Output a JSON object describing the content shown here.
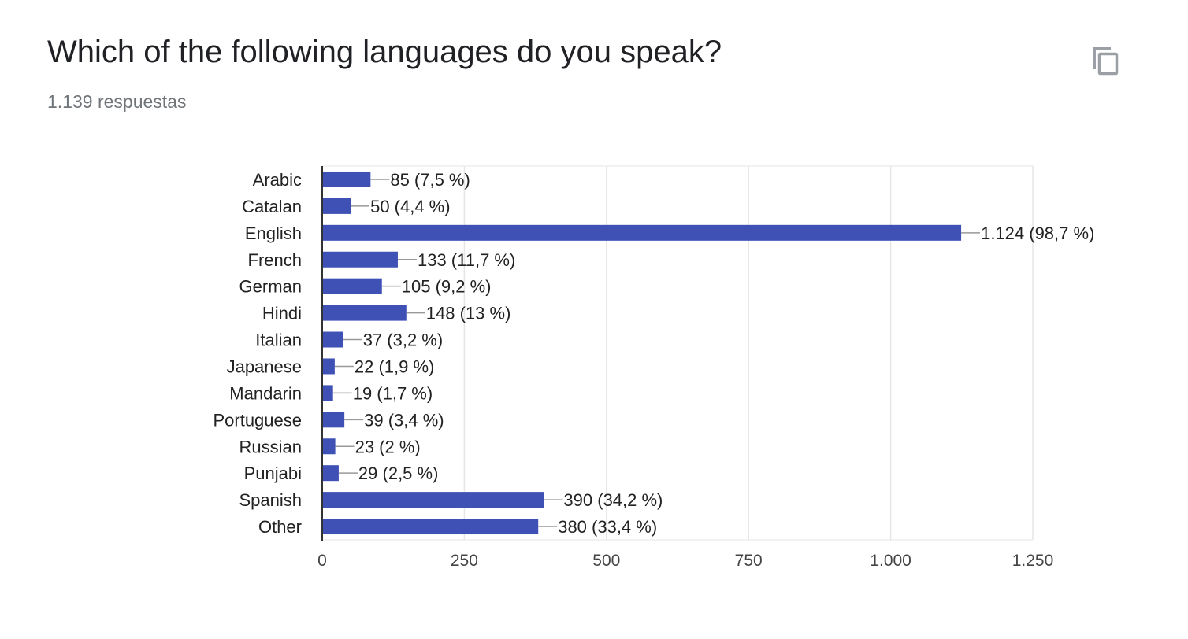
{
  "question": {
    "title": "Which of the following languages do you speak?",
    "responses": "1.139 respuestas"
  },
  "icons": {
    "copy": "copy-icon"
  },
  "colors": {
    "bar": "#3f51b5",
    "axis": "#333333",
    "grid": "#e6e6e6",
    "text": "#222222"
  },
  "chart_data": {
    "type": "bar",
    "orientation": "horizontal",
    "categories": [
      "Arabic",
      "Catalan",
      "English",
      "French",
      "German",
      "Hindi",
      "Italian",
      "Japanese",
      "Mandarin",
      "Portuguese",
      "Russian",
      "Punjabi",
      "Spanish",
      "Other"
    ],
    "values": [
      85,
      50,
      1124,
      133,
      105,
      148,
      37,
      22,
      19,
      39,
      23,
      29,
      390,
      380
    ],
    "data_labels": [
      "85 (7,5 %)",
      "50 (4,4 %)",
      "1.124 (98,7 %)",
      "133 (11,7 %)",
      "105 (9,2 %)",
      "148 (13 %)",
      "37 (3,2 %)",
      "22 (1,9 %)",
      "19 (1,7 %)",
      "39 (3,4 %)",
      "23 (2 %)",
      "29 (2,5 %)",
      "390 (34,2 %)",
      "380 (33,4 %)"
    ],
    "x_ticks": [
      0,
      250,
      500,
      750,
      1000,
      1250
    ],
    "x_tick_labels": [
      "0",
      "250",
      "500",
      "750",
      "1.000",
      "1.250"
    ],
    "xlim": [
      0,
      1250
    ],
    "grid": true,
    "legend": "none"
  }
}
